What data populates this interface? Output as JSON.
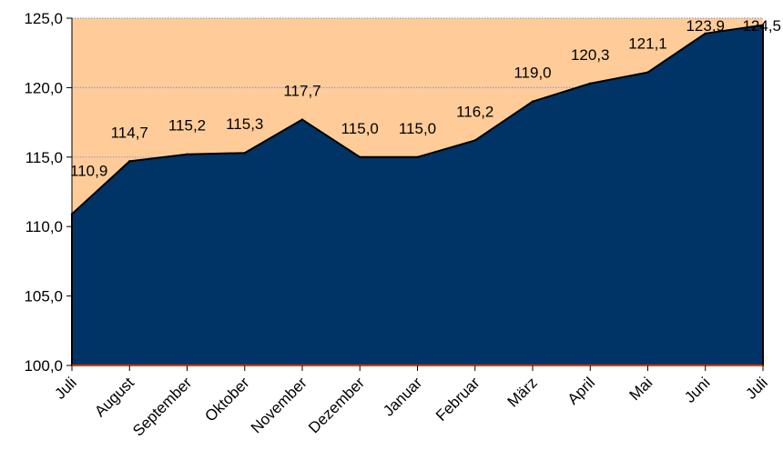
{
  "chart_data": {
    "type": "area",
    "categories": [
      "Juli",
      "August",
      "September",
      "Oktober",
      "November",
      "Dezember",
      "Januar",
      "Februar",
      "März",
      "April",
      "Mai",
      "Juni",
      "Juli"
    ],
    "values": [
      110.9,
      114.7,
      115.2,
      115.3,
      117.7,
      115.0,
      115.0,
      116.2,
      119.0,
      120.3,
      121.1,
      123.9,
      124.5
    ],
    "data_labels": [
      "110,9",
      "114,7",
      "115,2",
      "115,3",
      "117,7",
      "115,0",
      "115,0",
      "116,2",
      "119,0",
      "120,3",
      "121,1",
      "123,9",
      "124,5"
    ],
    "y_ticks": [
      100,
      105,
      110,
      115,
      120,
      125
    ],
    "y_tick_labels": [
      "100,0",
      "105,0",
      "110,0",
      "115,0",
      "120,0",
      "125,0"
    ],
    "ylim": [
      100,
      125
    ],
    "grid": "horizontal dotted",
    "legend": "none",
    "colors": {
      "area_fill": "#003366",
      "plot_background": "#FFCC99",
      "gridline": "#9999CC",
      "baseline": "#CC4400",
      "axis": "#000000"
    }
  }
}
